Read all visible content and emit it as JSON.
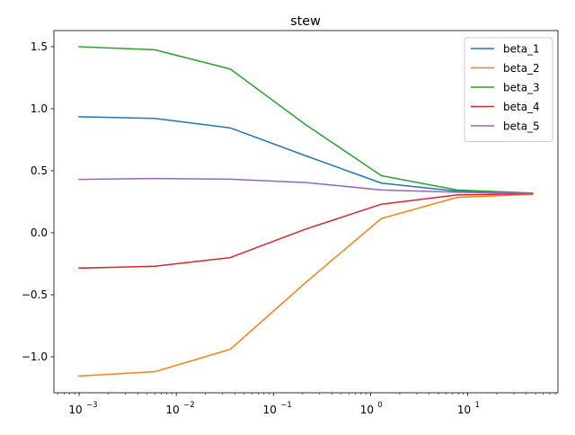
{
  "chart_data": {
    "type": "line",
    "title": "stew",
    "xlabel": "",
    "ylabel": "",
    "xscale": "log",
    "xlim": [
      0.00055,
      85
    ],
    "ylim": [
      -1.29,
      1.63
    ],
    "x_ticks": [
      {
        "value": 0.001,
        "base": "10",
        "exp": "−3"
      },
      {
        "value": 0.01,
        "base": "10",
        "exp": "−2"
      },
      {
        "value": 0.1,
        "base": "10",
        "exp": "−1"
      },
      {
        "value": 1,
        "base": "10",
        "exp": "0"
      },
      {
        "value": 10,
        "base": "10",
        "exp": "1"
      }
    ],
    "y_ticks": [
      {
        "value": 1.5,
        "label": "1.5"
      },
      {
        "value": 1.0,
        "label": "1.0"
      },
      {
        "value": 0.5,
        "label": "0.5"
      },
      {
        "value": 0.0,
        "label": "0.0"
      },
      {
        "value": -0.5,
        "label": "−0.5"
      },
      {
        "value": -1.0,
        "label": "−1.0"
      }
    ],
    "grid": false,
    "legend_position": "top-right",
    "x": [
      0.001,
      0.006,
      0.036,
      0.216,
      1.296,
      7.776,
      46.656
    ],
    "series": [
      {
        "name": "beta_1",
        "color": "#1f77b4",
        "values": [
          0.935,
          0.922,
          0.845,
          0.62,
          0.4,
          0.335,
          0.318
        ]
      },
      {
        "name": "beta_2",
        "color": "#ff7f0e",
        "values": [
          -1.155,
          -1.12,
          -0.94,
          -0.4,
          0.115,
          0.285,
          0.31
        ]
      },
      {
        "name": "beta_3",
        "color": "#2ca02c",
        "values": [
          1.5,
          1.475,
          1.32,
          0.87,
          0.46,
          0.345,
          0.32
        ]
      },
      {
        "name": "beta_4",
        "color": "#d62728",
        "values": [
          -0.285,
          -0.27,
          -0.2,
          0.03,
          0.23,
          0.305,
          0.315
        ]
      },
      {
        "name": "beta_5",
        "color": "#9467bd",
        "values": [
          0.43,
          0.437,
          0.432,
          0.405,
          0.345,
          0.327,
          0.318
        ]
      }
    ]
  }
}
